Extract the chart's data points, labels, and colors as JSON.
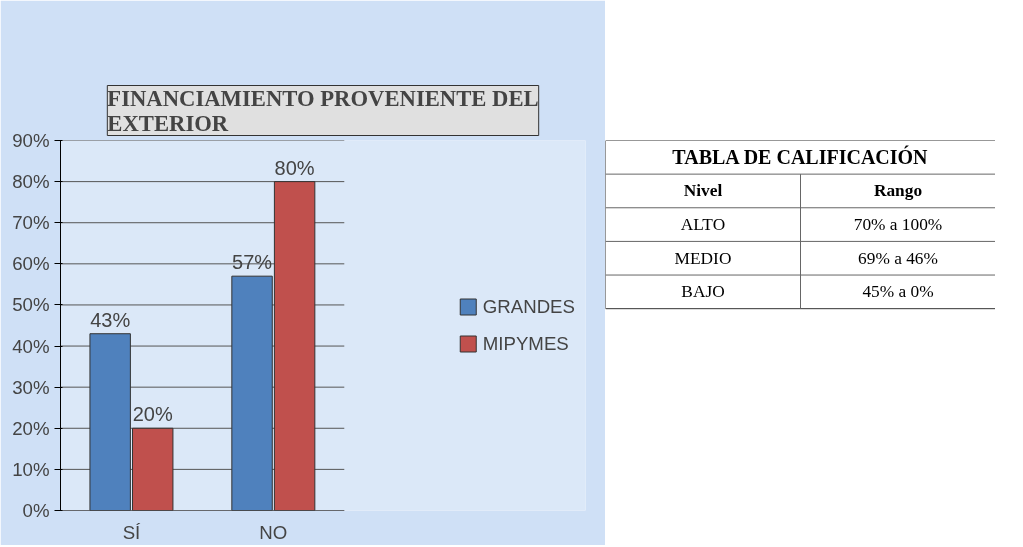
{
  "chart_data": [
    {
      "type": "bar",
      "title": "FINANCIAMIENTO PROVENIENTE DEL EXTERIOR",
      "categories": [
        "SÍ",
        "NO"
      ],
      "series": [
        {
          "name": "GRANDES",
          "color": "#4f81bd",
          "values": [
            43,
            57
          ]
        },
        {
          "name": "MIPYMES",
          "color": "#c0504d",
          "values": [
            20,
            80
          ]
        }
      ],
      "ylim": [
        0,
        90
      ],
      "yticks": [
        {
          "value": 0,
          "label": "0%"
        },
        {
          "value": 10,
          "label": "10%"
        },
        {
          "value": 20,
          "label": "20%"
        },
        {
          "value": 30,
          "label": "30%"
        },
        {
          "value": 40,
          "label": "40%"
        },
        {
          "value": 50,
          "label": "50%"
        },
        {
          "value": 60,
          "label": "60%"
        },
        {
          "value": 70,
          "label": "70%"
        },
        {
          "value": 80,
          "label": "80%"
        },
        {
          "value": 90,
          "label": "90%"
        }
      ],
      "value_labels": [
        [
          "43%",
          "57%"
        ],
        [
          "20%",
          "80%"
        ]
      ],
      "grid": "y",
      "legend": "right"
    },
    {
      "type": "other",
      "title": "TABLA DE CALIFICACIÓN",
      "annotations": [
        "Nivel",
        "Rango",
        "ALTO",
        "70% a 100%",
        "MEDIO",
        "69% a 46%",
        "BAJO",
        "45% a 0%"
      ]
    }
  ]
}
